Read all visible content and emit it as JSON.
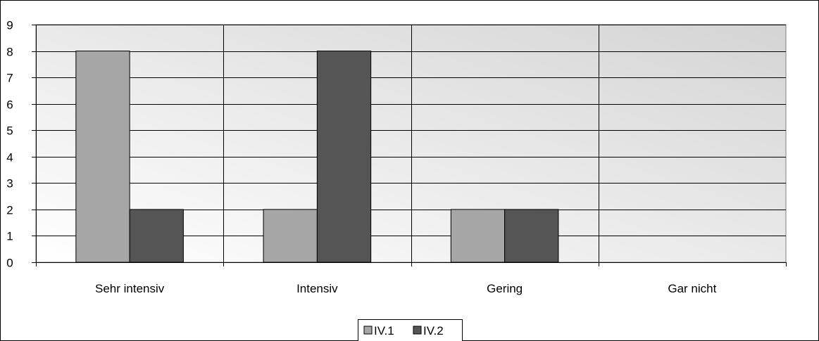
{
  "chart_data": {
    "type": "bar",
    "title": "",
    "xlabel": "",
    "ylabel": "",
    "categories": [
      "Sehr intensiv",
      "Intensiv",
      "Gering",
      "Gar nicht"
    ],
    "series": [
      {
        "name": "IV.1",
        "values": [
          8,
          2,
          2,
          0
        ],
        "color": "#a6a6a6"
      },
      {
        "name": "IV.2",
        "values": [
          2,
          8,
          2,
          0
        ],
        "color": "#555555"
      }
    ],
    "ylim": [
      0,
      9
    ],
    "yticks": [
      0,
      1,
      2,
      3,
      4,
      5,
      6,
      7,
      8,
      9
    ],
    "grid": true,
    "legend_position": "bottom-center"
  },
  "colors": {
    "plot_bg_light": "#ffffff",
    "plot_bg_dark": "#d4d4d4",
    "grid": "#000000",
    "bar_outline": "#000000"
  }
}
